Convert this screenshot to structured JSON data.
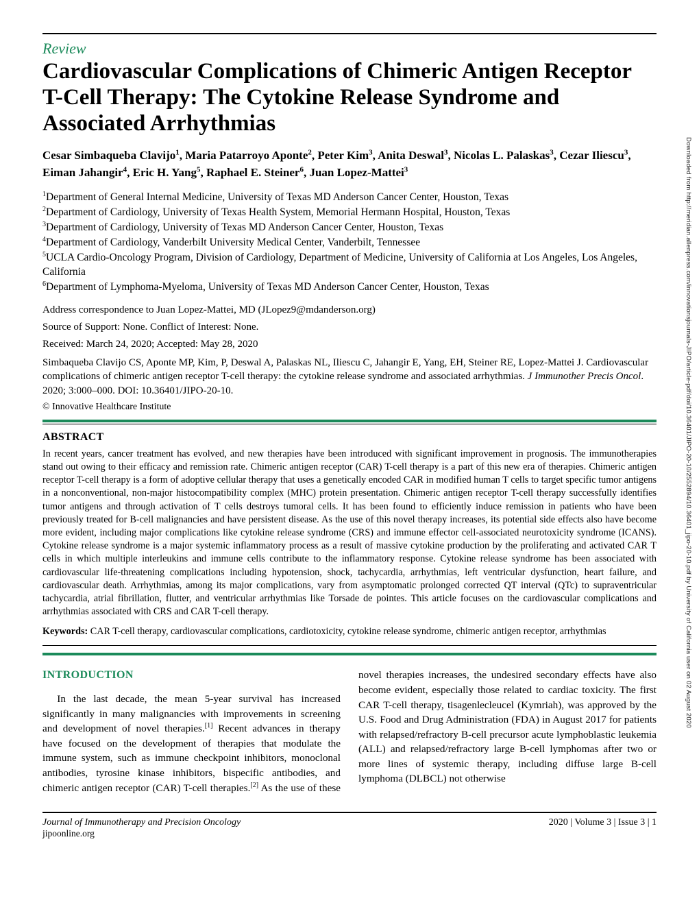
{
  "article_type": "Review",
  "title": "Cardiovascular Complications of Chimeric Antigen Receptor T-Cell Therapy: The Cytokine Release Syndrome and Associated Arrhythmias",
  "authors_html": "Cesar Simbaqueba Clavijo<sup>1</sup>, Maria Patarroyo Aponte<sup>2</sup>, Peter Kim<sup>3</sup>, Anita Deswal<sup>3</sup>, Nicolas L. Palaskas<sup>3</sup>, Cezar Iliescu<sup>3</sup>, Eiman Jahangir<sup>4</sup>, Eric H. Yang<sup>5</sup>, Raphael E. Steiner<sup>6</sup>, Juan Lopez-Mattei<sup>3</sup>",
  "affiliations": [
    {
      "n": "1",
      "text": "Department of General Internal Medicine, University of Texas MD Anderson Cancer Center, Houston, Texas"
    },
    {
      "n": "2",
      "text": "Department of Cardiology, University of Texas Health System, Memorial Hermann Hospital, Houston, Texas"
    },
    {
      "n": "3",
      "text": "Department of Cardiology, University of Texas MD Anderson Cancer Center, Houston, Texas"
    },
    {
      "n": "4",
      "text": "Department of Cardiology, Vanderbilt University Medical Center, Vanderbilt, Tennessee"
    },
    {
      "n": "5",
      "text": "UCLA Cardio-Oncology Program, Division of Cardiology, Department of Medicine, University of California at Los Angeles, Los Angeles, California"
    },
    {
      "n": "6",
      "text": "Department of Lymphoma-Myeloma, University of Texas MD Anderson Cancer Center, Houston, Texas"
    }
  ],
  "correspondence": "Address correspondence to Juan Lopez-Mattei, MD (JLopez9@mdanderson.org)",
  "support": "Source of Support: None. Conflict of Interest: None.",
  "dates": "Received: March 24, 2020; Accepted: May 28, 2020",
  "citation_text": "Simbaqueba Clavijo CS, Aponte MP, Kim, P, Deswal A, Palaskas NL, Iliescu C, Jahangir E, Yang, EH, Steiner RE, Lopez-Mattei J. Cardiovascular complications of chimeric antigen receptor T-cell therapy: the cytokine release syndrome and associated arrhythmias. ",
  "citation_journal": "J Immunother Precis Oncol",
  "citation_tail": ". 2020; 3:000–000. DOI: 10.36401/JIPO-20-10.",
  "copyright": "© Innovative Healthcare Institute",
  "abstract_heading": "ABSTRACT",
  "abstract": "In recent years, cancer treatment has evolved, and new therapies have been introduced with significant improvement in prognosis. The immunotherapies stand out owing to their efficacy and remission rate. Chimeric antigen receptor (CAR) T-cell therapy is a part of this new era of therapies. Chimeric antigen receptor T-cell therapy is a form of adoptive cellular therapy that uses a genetically encoded CAR in modified human T cells to target specific tumor antigens in a nonconventional, non-major histocompatibility complex (MHC) protein presentation. Chimeric antigen receptor T-cell therapy successfully identifies tumor antigens and through activation of T cells destroys tumoral cells. It has been found to efficiently induce remission in patients who have been previously treated for B-cell malignancies and have persistent disease. As the use of this novel therapy increases, its potential side effects also have become more evident, including major complications like cytokine release syndrome (CRS) and immune effector cell-associated neurotoxicity syndrome (ICANS). Cytokine release syndrome is a major systemic inflammatory process as a result of massive cytokine production by the proliferating and activated CAR T cells in which multiple interleukins and immune cells contribute to the inflammatory response. Cytokine release syndrome has been associated with cardiovascular life-threatening complications including hypotension, shock, tachycardia, arrhythmias, left ventricular dysfunction, heart failure, and cardiovascular death. Arrhythmias, among its major complications, vary from asymptomatic prolonged corrected QT interval (QTc) to supraventricular tachycardia, atrial fibrillation, flutter, and ventricular arrhythmias like Torsade de pointes. This article focuses on the cardiovascular complications and arrhythmias associated with CRS and CAR T-cell therapy.",
  "keywords_label": "Keywords:",
  "keywords": " CAR T-cell therapy, cardiovascular complications, cardiotoxicity, cytokine release syndrome, chimeric antigen receptor, arrhythmias",
  "intro_heading": "INTRODUCTION",
  "intro_para": "In the last decade, the mean 5-year survival has increased significantly in many malignancies with improvements in screening and development of novel therapies.[1] Recent advances in therapy have focused on the development of therapies that modulate the immune system, such as immune checkpoint inhibitors, monoclonal antibodies, tyrosine kinase inhibitors, bispecific antibodies, and chimeric antigen receptor (CAR) T-cell therapies.[2] As the use of these novel therapies increases, the undesired secondary effects have also become evident, especially those related to cardiac toxicity. The first CAR T-cell therapy, tisagenlecleucel (Kymriah), was approved by the U.S. Food and Drug Administration (FDA) in August 2017 for patients with relapsed/refractory B-cell precursor acute lymphoblastic leukemia (ALL) and relapsed/refractory large B-cell lymphomas after two or more lines of systemic therapy, including diffuse large B-cell lymphoma (DLBCL) not otherwise",
  "footer": {
    "journal": "Journal of Immunotherapy and Precision Oncology",
    "site": "jipoonline.org",
    "issue": "2020 | Volume 3 | Issue 3 | 1"
  },
  "sidetext": "Downloaded from http://meridian.allenpress.com/innovationsjournals-JIPO/article-pdf/doi/10.36401/JIPO-20-10/2552894/10.36401_jipo-20-10.pdf by University of California user on 02 August 2020",
  "colors": {
    "accent": "#1b8a5a",
    "text": "#000000",
    "background": "#ffffff"
  },
  "typography": {
    "title_fontsize": 33,
    "body_fontsize": 15.2,
    "abstract_fontsize": 14.2
  }
}
